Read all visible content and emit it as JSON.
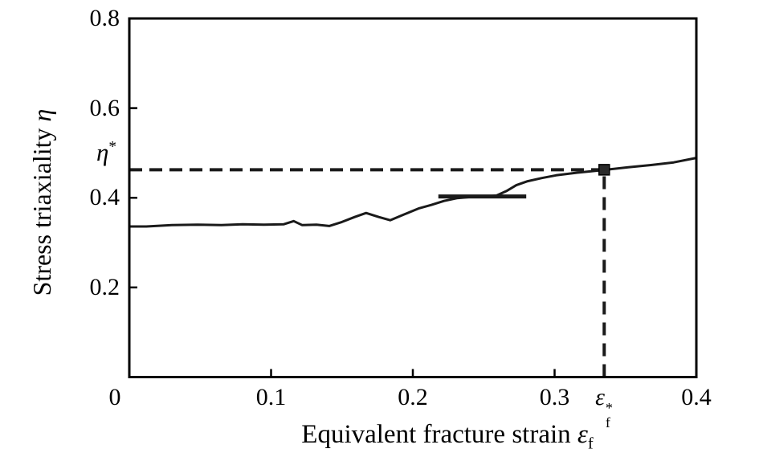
{
  "figure": {
    "background": "#ffffff",
    "axis_color": "#000000",
    "curve_color": "#1a1a1a",
    "dash_color": "#1a1a1a",
    "marker_color": "#2a2a2a"
  },
  "chart_data": {
    "type": "line",
    "title": "",
    "xlabel": {
      "text": "Equivalent fracture strain",
      "symbol": "ε",
      "subscript": "f"
    },
    "ylabel": {
      "text": "Stress triaxiality",
      "symbol": "η"
    },
    "xlim": [
      0,
      0.4
    ],
    "ylim": [
      0,
      0.8
    ],
    "grid": false,
    "legend": null,
    "x_tick_values": [
      0,
      0.1,
      0.2,
      0.3,
      0.4
    ],
    "x_tick_labels": [
      "0",
      "0.1",
      "0.2",
      "0.3",
      "0.4"
    ],
    "y_tick_values": [
      0.2,
      0.4,
      0.6,
      0.8
    ],
    "y_tick_labels": [
      "0.2",
      "0.4",
      "0.6",
      "0.8"
    ],
    "series": [
      {
        "name": "stress-triaxiality-curve",
        "x": [
          0.0,
          0.012,
          0.03,
          0.048,
          0.065,
          0.08,
          0.095,
          0.109,
          0.116,
          0.122,
          0.132,
          0.141,
          0.15,
          0.159,
          0.167,
          0.176,
          0.184,
          0.194,
          0.204,
          0.213,
          0.222,
          0.231,
          0.242,
          0.252,
          0.259,
          0.266,
          0.273,
          0.281,
          0.291,
          0.301,
          0.316,
          0.335,
          0.352,
          0.368,
          0.384,
          0.4
        ],
        "y": [
          0.336,
          0.336,
          0.339,
          0.34,
          0.339,
          0.341,
          0.34,
          0.341,
          0.348,
          0.339,
          0.34,
          0.337,
          0.346,
          0.357,
          0.366,
          0.357,
          0.35,
          0.363,
          0.376,
          0.384,
          0.393,
          0.399,
          0.402,
          0.403,
          0.405,
          0.415,
          0.428,
          0.437,
          0.444,
          0.45,
          0.456,
          0.462,
          0.468,
          0.473,
          0.479,
          0.489
        ]
      }
    ],
    "annotations": {
      "eta_star": {
        "value": 0.4625,
        "label": "η",
        "superscript": "*"
      },
      "eps_f_star": {
        "value": 0.335,
        "label": "ε",
        "subscript": "f",
        "superscript": "*"
      },
      "dashed_hline": {
        "y": 0.4625,
        "x_from": 0,
        "x_to": 0.335
      },
      "dashed_vline": {
        "x": 0.335,
        "y_from": 0,
        "y_to": 0.4625
      },
      "marker_point": {
        "x": 0.335,
        "y": 0.4625,
        "shape": "square"
      },
      "plateau_segment": {
        "y": 0.403,
        "x_from": 0.218,
        "x_to": 0.28
      }
    }
  }
}
